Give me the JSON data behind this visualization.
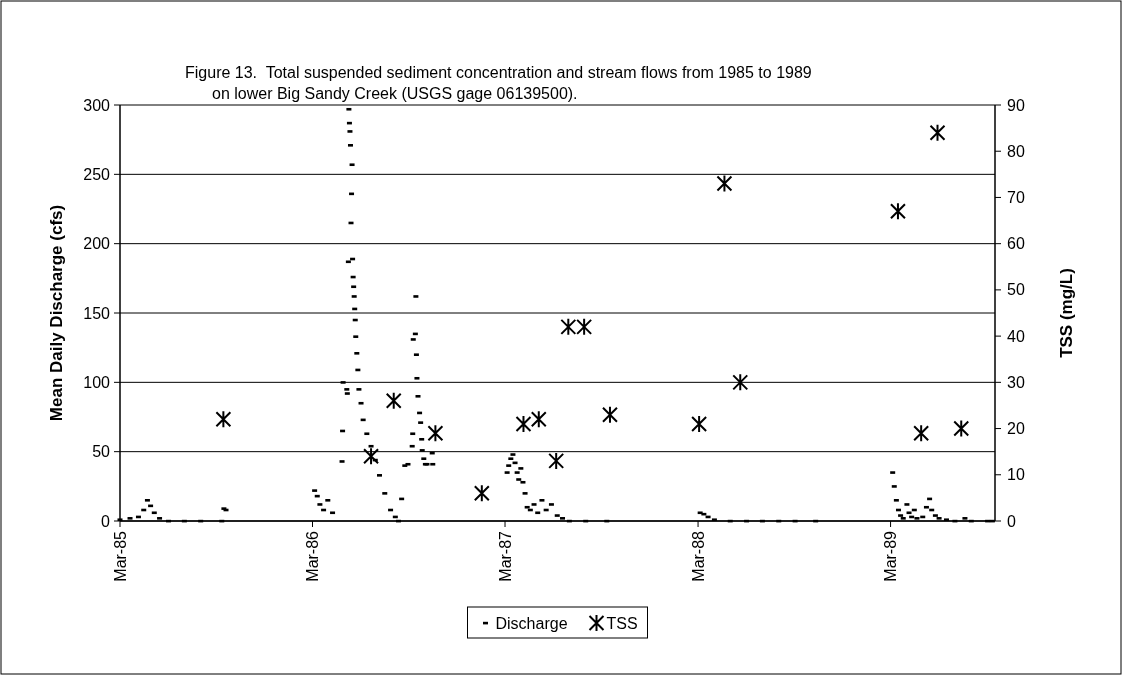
{
  "chart_data": {
    "type": "scatter",
    "title": "Figure 13.  Total suspended sediment concentration and stream flows from 1985 to 1989 on lower Big Sandy Creek (USGS gage 06139500).",
    "ylabel": "Mean Daily Discharge (cfs)",
    "y2label": "TSS (mg/L)",
    "xlim": [
      "1985-03-01",
      "1989-09-15"
    ],
    "xticks": [
      {
        "value": "1985-03-01",
        "label": "Mar-85"
      },
      {
        "value": "1986-03-01",
        "label": "Mar-86"
      },
      {
        "value": "1987-03-01",
        "label": "Mar-87"
      },
      {
        "value": "1988-03-01",
        "label": "Mar-88"
      },
      {
        "value": "1989-03-01",
        "label": "Mar-89"
      }
    ],
    "ylim": [
      0,
      300
    ],
    "yticks": [
      0,
      50,
      100,
      150,
      200,
      250,
      300
    ],
    "y2lim": [
      0,
      90
    ],
    "y2ticks": [
      0,
      10,
      20,
      30,
      40,
      50,
      60,
      70,
      80,
      90
    ],
    "grid": "y",
    "legend": "bottom",
    "series": [
      {
        "name": "Discharge",
        "marker": "square",
        "color": "#000000",
        "x": [
          "1985-03-01",
          "1985-03-20",
          "1985-04-05",
          "1985-04-15",
          "1985-04-22",
          "1985-04-28",
          "1985-05-05",
          "1985-05-15",
          "1985-06-01",
          "1985-07-01",
          "1985-08-01",
          "1985-09-10",
          "1985-09-14",
          "1985-09-18",
          "1986-03-05",
          "1986-03-10",
          "1986-03-15",
          "1986-03-22",
          "1986-03-30",
          "1986-04-08",
          "1986-04-26",
          "1986-04-27",
          "1986-04-28",
          "1986-05-05",
          "1986-05-06",
          "1986-05-08",
          "1986-05-09",
          "1986-05-10",
          "1986-05-11",
          "1986-05-12",
          "1986-05-13",
          "1986-05-14",
          "1986-05-15",
          "1986-05-16",
          "1986-05-17",
          "1986-05-18",
          "1986-05-19",
          "1986-05-20",
          "1986-05-21",
          "1986-05-22",
          "1986-05-24",
          "1986-05-26",
          "1986-05-28",
          "1986-06-01",
          "1986-06-05",
          "1986-06-12",
          "1986-06-20",
          "1986-06-28",
          "1986-07-06",
          "1986-07-16",
          "1986-07-27",
          "1986-08-05",
          "1986-08-11",
          "1986-08-17",
          "1986-08-23",
          "1986-08-29",
          "1986-09-06",
          "1986-09-07",
          "1986-09-08",
          "1986-09-12",
          "1986-09-13",
          "1986-09-14",
          "1986-09-15",
          "1986-09-17",
          "1986-09-20",
          "1986-09-22",
          "1986-09-24",
          "1986-09-25",
          "1986-09-28",
          "1986-10-01",
          "1986-10-04",
          "1986-10-14",
          "1986-10-15",
          "1987-03-05",
          "1987-03-08",
          "1987-03-12",
          "1987-03-16",
          "1987-03-20",
          "1987-03-24",
          "1987-03-27",
          "1987-03-31",
          "1987-04-04",
          "1987-04-08",
          "1987-04-12",
          "1987-04-18",
          "1987-04-25",
          "1987-05-02",
          "1987-05-10",
          "1987-05-18",
          "1987-05-28",
          "1987-06-08",
          "1987-06-18",
          "1987-07-01",
          "1987-08-01",
          "1987-09-10",
          "1988-03-05",
          "1988-03-12",
          "1988-03-20",
          "1988-04-01",
          "1988-05-01",
          "1988-06-01",
          "1988-07-01",
          "1988-08-01",
          "1988-09-01",
          "1988-10-10",
          "1989-03-05",
          "1989-03-08",
          "1989-03-12",
          "1989-03-16",
          "1989-03-20",
          "1989-03-25",
          "1989-04-01",
          "1989-04-05",
          "1989-04-10",
          "1989-04-15",
          "1989-04-20",
          "1989-05-01",
          "1989-05-08",
          "1989-05-14",
          "1989-05-18",
          "1989-05-25",
          "1989-06-01",
          "1989-06-15",
          "1989-07-01",
          "1989-07-20",
          "1989-08-01",
          "1989-09-01",
          "1989-09-10"
        ],
        "values": [
          1,
          2,
          3,
          8,
          15,
          11,
          6,
          2,
          0,
          0,
          0,
          0,
          9,
          8,
          22,
          18,
          12,
          8,
          15,
          6,
          43,
          65,
          100,
          95,
          92,
          187,
          297,
          287,
          281,
          271,
          215,
          236,
          257,
          189,
          176,
          169,
          162,
          153,
          145,
          133,
          121,
          109,
          95,
          85,
          73,
          63,
          54,
          44,
          33,
          20,
          8,
          3,
          0,
          16,
          40,
          41,
          54,
          63,
          131,
          135,
          162,
          120,
          103,
          90,
          78,
          71,
          59,
          51,
          45,
          41,
          41,
          49,
          41,
          35,
          40,
          45,
          48,
          42,
          35,
          30,
          38,
          28,
          20,
          10,
          8,
          12,
          6,
          15,
          8,
          12,
          4,
          2,
          0,
          0,
          0,
          6,
          5,
          3,
          1,
          0,
          0,
          0,
          0,
          0,
          0,
          35,
          25,
          15,
          8,
          4,
          2,
          12,
          6,
          3,
          8,
          2,
          3,
          10,
          16,
          8,
          4,
          2,
          1,
          0,
          2,
          0,
          0,
          0
        ]
      },
      {
        "name": "TSS",
        "marker": "cross",
        "axis": "y2",
        "color": "#000000",
        "x": [
          "1985-09-13",
          "1986-06-20",
          "1986-08-02",
          "1986-10-20",
          "1987-01-16",
          "1987-04-05",
          "1987-05-04",
          "1987-06-06",
          "1987-06-29",
          "1987-07-29",
          "1987-09-16",
          "1988-03-03",
          "1988-04-20",
          "1988-05-20",
          "1989-03-15",
          "1989-04-28",
          "1989-05-29",
          "1989-07-13"
        ],
        "values": [
          22,
          14,
          26,
          19,
          6,
          21,
          22,
          13,
          42,
          42,
          23,
          21,
          73,
          30,
          67,
          19,
          84,
          20
        ]
      }
    ]
  }
}
